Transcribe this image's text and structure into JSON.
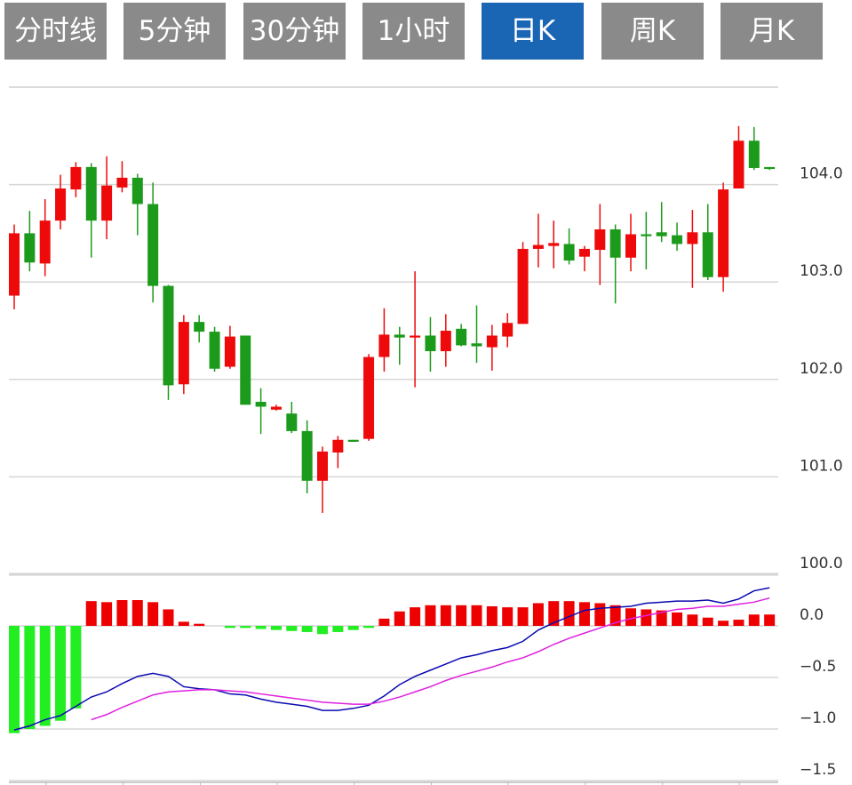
{
  "tabs": [
    {
      "label": "分时线",
      "active": false
    },
    {
      "label": "5分钟",
      "active": false
    },
    {
      "label": "30分钟",
      "active": false
    },
    {
      "label": "1小时",
      "active": false
    },
    {
      "label": "日K",
      "active": true
    },
    {
      "label": "周K",
      "active": false
    },
    {
      "label": "月K",
      "active": false
    }
  ],
  "chart_data": [
    {
      "type": "candlestick",
      "ylim": [
        100,
        105
      ],
      "yticks": [
        {
          "value": 100,
          "label": "100.0"
        },
        {
          "value": 101,
          "label": "101.0"
        },
        {
          "value": 102,
          "label": "102.0"
        },
        {
          "value": 103,
          "label": "103.0"
        },
        {
          "value": 104,
          "label": "104.0"
        }
      ],
      "grid": true,
      "up_color": "#ee0a0a",
      "down_color": "#1c9a1c",
      "open": [
        102.86,
        103.5,
        103.19,
        103.63,
        103.95,
        104.18,
        103.63,
        103.97,
        104.07,
        103.8,
        102.96,
        101.95,
        102.59,
        102.49,
        102.13,
        102.45,
        101.77,
        101.69,
        101.65,
        101.47,
        100.96,
        101.25,
        101.38,
        101.39,
        102.23,
        102.46,
        102.43,
        102.45,
        102.29,
        102.52,
        102.37,
        102.33,
        102.44,
        102.57,
        103.34,
        103.37,
        103.39,
        103.26,
        103.33,
        103.54,
        103.25,
        103.49,
        103.51,
        103.48,
        103.39,
        103.51,
        103.05,
        103.96,
        104.45,
        104.18
      ],
      "high": [
        103.59,
        103.73,
        103.85,
        104.1,
        104.23,
        104.22,
        104.29,
        104.24,
        104.11,
        104.02,
        102.97,
        102.66,
        102.66,
        102.54,
        102.55,
        102.45,
        101.91,
        101.74,
        101.77,
        101.58,
        101.31,
        101.42,
        101.38,
        102.26,
        102.73,
        102.54,
        103.11,
        102.64,
        102.67,
        102.57,
        102.76,
        102.56,
        102.68,
        103.41,
        103.7,
        103.63,
        103.55,
        103.37,
        103.8,
        103.59,
        103.7,
        103.72,
        103.82,
        103.61,
        103.74,
        103.8,
        104.02,
        104.6,
        104.59,
        104.18
      ],
      "low": [
        102.72,
        103.11,
        103.06,
        103.54,
        103.87,
        103.25,
        103.44,
        103.92,
        103.48,
        102.79,
        101.79,
        101.85,
        102.38,
        102.08,
        102.11,
        101.74,
        101.44,
        101.68,
        101.45,
        100.83,
        100.63,
        101.09,
        101.36,
        101.37,
        102.08,
        102.15,
        101.92,
        102.08,
        102.13,
        102.34,
        102.17,
        102.09,
        102.33,
        102.57,
        103.15,
        103.14,
        103.18,
        103.11,
        102.97,
        102.78,
        103.11,
        103.13,
        103.41,
        103.32,
        102.94,
        103.02,
        102.9,
        103.96,
        104.15,
        104.15
      ],
      "close": [
        103.5,
        103.2,
        103.63,
        103.96,
        104.18,
        103.63,
        103.99,
        104.07,
        103.8,
        102.96,
        101.94,
        102.59,
        102.49,
        102.11,
        102.44,
        101.74,
        101.72,
        101.72,
        101.47,
        100.96,
        101.26,
        101.38,
        101.36,
        102.23,
        102.46,
        102.43,
        102.45,
        102.29,
        102.5,
        102.35,
        102.34,
        102.45,
        102.58,
        103.34,
        103.38,
        103.4,
        103.22,
        103.34,
        103.54,
        103.25,
        103.49,
        103.47,
        103.47,
        103.39,
        103.51,
        103.05,
        103.95,
        104.45,
        104.17,
        104.16
      ]
    },
    {
      "type": "macd",
      "ylim": [
        -1.5,
        0.5
      ],
      "yticks": [
        {
          "value": 0,
          "label": "0.0"
        },
        {
          "value": -0.5,
          "label": "−0.5"
        },
        {
          "value": -1,
          "label": "−1.0"
        },
        {
          "value": -1.5,
          "label": "−1.5"
        }
      ],
      "grid": true,
      "histogram": {
        "up_color": "#ee0000",
        "down_color": "#22ee22",
        "values": [
          -1.04,
          -1.0,
          -0.97,
          -0.92,
          -0.8,
          0.24,
          0.23,
          0.25,
          0.25,
          0.23,
          0.16,
          0.04,
          0.02,
          0,
          -0.02,
          -0.02,
          -0.03,
          -0.04,
          -0.05,
          -0.06,
          -0.08,
          -0.06,
          -0.04,
          -0.02,
          0.07,
          0.14,
          0.18,
          0.2,
          0.2,
          0.2,
          0.2,
          0.19,
          0.18,
          0.18,
          0.22,
          0.24,
          0.24,
          0.23,
          0.22,
          0.2,
          0.17,
          0.16,
          0.15,
          0.13,
          0.11,
          0.08,
          0.05,
          0.06,
          0.11,
          0.11
        ]
      },
      "series": [
        {
          "color": "#0a0ab0",
          "values": [
            -1.01,
            -0.97,
            -0.91,
            -0.87,
            -0.78,
            -0.69,
            -0.64,
            -0.56,
            -0.49,
            -0.46,
            -0.49,
            -0.59,
            -0.61,
            -0.62,
            -0.66,
            -0.67,
            -0.71,
            -0.74,
            -0.76,
            -0.78,
            -0.82,
            -0.82,
            -0.8,
            -0.77,
            -0.68,
            -0.57,
            -0.49,
            -0.43,
            -0.37,
            -0.31,
            -0.28,
            -0.24,
            -0.21,
            -0.15,
            -0.04,
            0.03,
            0.09,
            0.15,
            0.17,
            0.18,
            0.19,
            0.22,
            0.23,
            0.24,
            0.24,
            0.25,
            0.22,
            0.26,
            0.34,
            0.37
          ]
        },
        {
          "color": "#e020e0",
          "values": [
            null,
            null,
            null,
            null,
            null,
            -0.91,
            -0.86,
            -0.79,
            -0.73,
            -0.67,
            -0.64,
            -0.63,
            -0.62,
            -0.62,
            -0.63,
            -0.64,
            -0.66,
            -0.68,
            -0.7,
            -0.72,
            -0.74,
            -0.75,
            -0.76,
            -0.76,
            -0.73,
            -0.69,
            -0.64,
            -0.59,
            -0.53,
            -0.48,
            -0.44,
            -0.4,
            -0.35,
            -0.31,
            -0.25,
            -0.18,
            -0.12,
            -0.07,
            -0.02,
            0.03,
            0.07,
            0.1,
            0.13,
            0.16,
            0.17,
            0.19,
            0.19,
            0.21,
            0.23,
            0.27
          ]
        }
      ]
    }
  ]
}
